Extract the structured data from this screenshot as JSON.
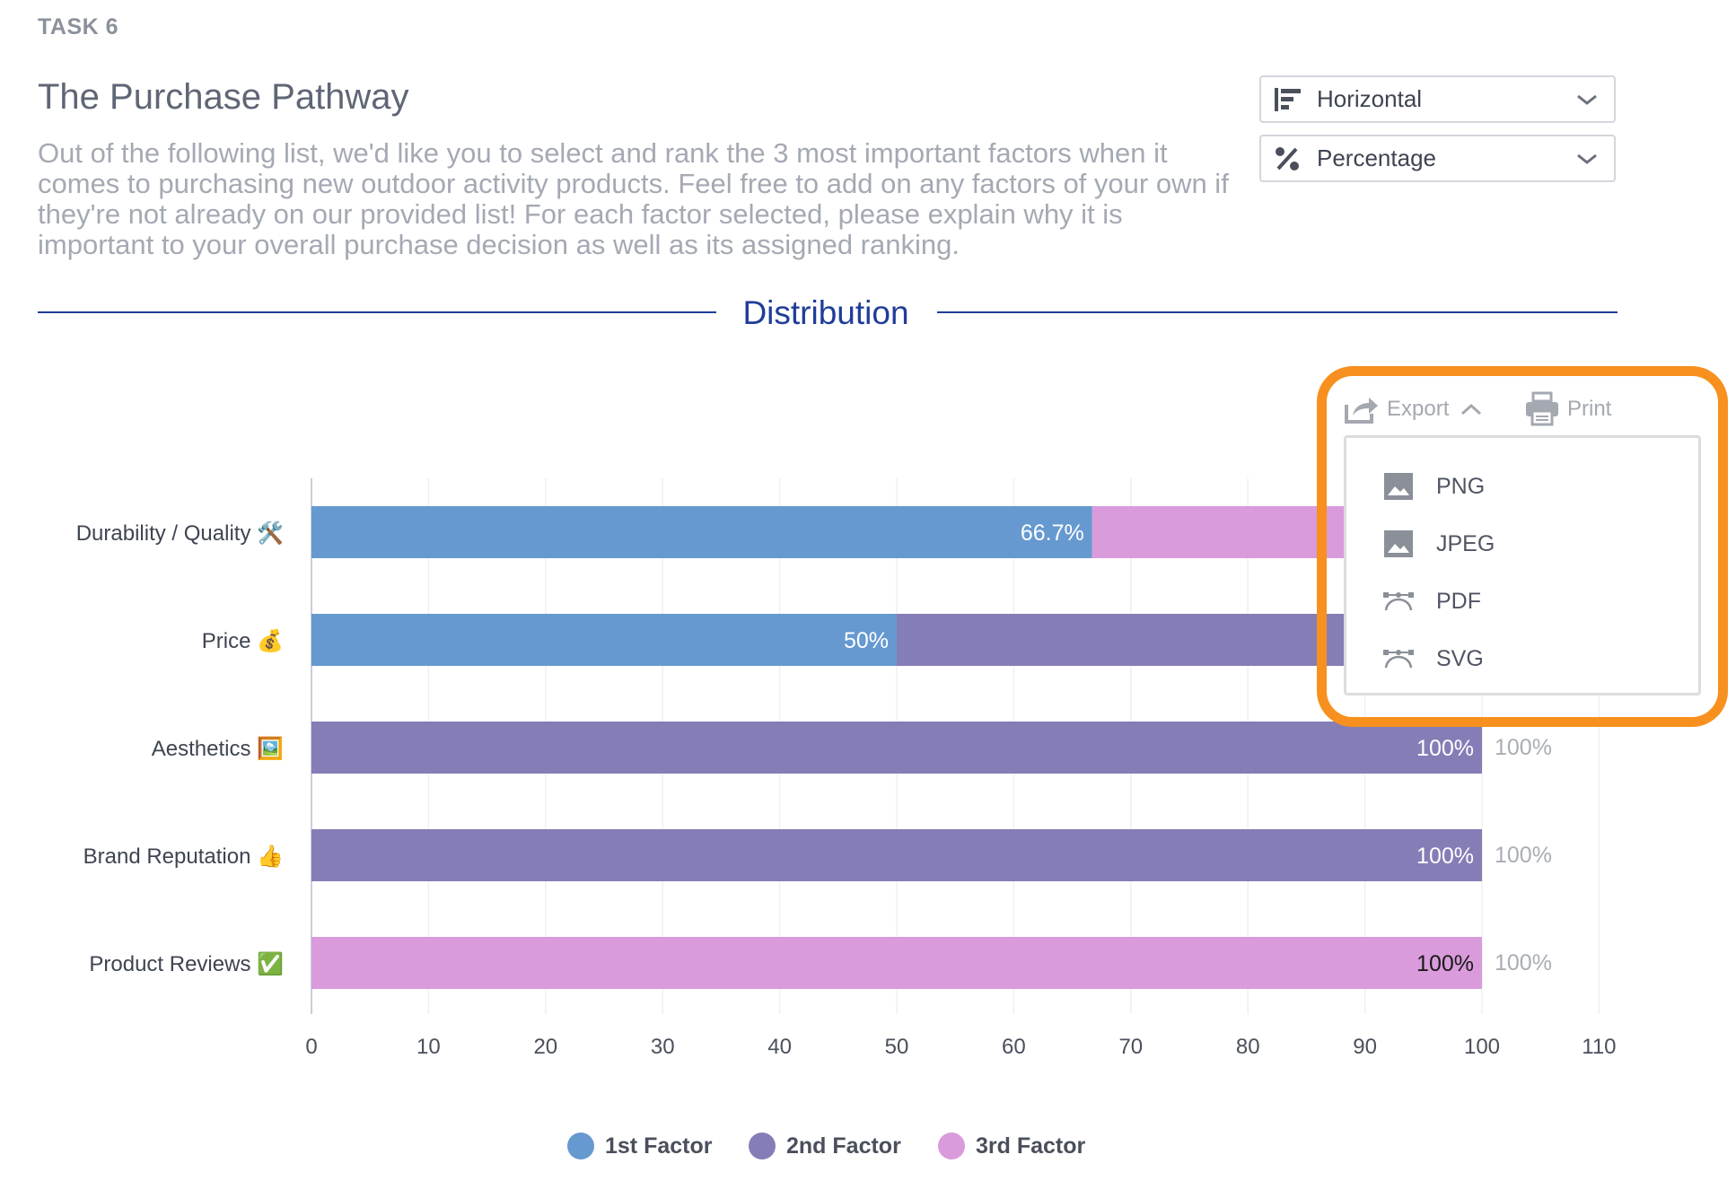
{
  "task_label": "TASK 6",
  "title": "The Purchase Pathway",
  "description": "Out of the following list, we'd like you to select and rank the 3 most important factors when it comes to purchasing new outdoor activity products. Feel free to add on any factors of your own if they're not already on our provided list! For each factor selected, please explain why it is important to your overall purchase decision as well as its assigned ranking.",
  "controls": {
    "orientation": {
      "label": "Horizontal",
      "icon": "horizontal-bars-icon"
    },
    "value_mode": {
      "label": "Percentage",
      "icon": "percent-icon"
    }
  },
  "section_title": "Distribution",
  "toolbar": {
    "export_label": "Export",
    "print_label": "Print"
  },
  "export_menu": {
    "open": true,
    "items": [
      {
        "label": "PNG",
        "icon": "image-icon"
      },
      {
        "label": "JPEG",
        "icon": "image-icon"
      },
      {
        "label": "PDF",
        "icon": "vector-icon"
      },
      {
        "label": "SVG",
        "icon": "vector-icon"
      }
    ]
  },
  "colors": {
    "first": "#6699d0",
    "second": "#857db6",
    "third": "#d99bdb",
    "highlight": "#f7901e",
    "accent": "#1f3d99"
  },
  "chart_data": {
    "type": "bar",
    "orientation": "horizontal",
    "stacked": true,
    "categories": [
      "Durability / Quality 🛠️",
      "Price 💰",
      "Aesthetics 🖼️",
      "Brand Reputation 👍",
      "Product Reviews ✅"
    ],
    "series": [
      {
        "name": "1st Factor",
        "values": [
          66.7,
          50,
          0,
          0,
          0
        ],
        "labels": [
          "66.7%",
          "50%",
          "",
          "",
          ""
        ]
      },
      {
        "name": "2nd Factor",
        "values": [
          0,
          50,
          100,
          100,
          0
        ],
        "labels": [
          "",
          "",
          "100%",
          "100%",
          ""
        ]
      },
      {
        "name": "3rd Factor",
        "values": [
          33.3,
          0,
          0,
          0,
          100
        ],
        "labels": [
          "",
          "",
          "",
          "",
          "100%"
        ]
      }
    ],
    "totals": [
      "",
      "",
      "100%",
      "100%",
      "100%"
    ],
    "xlim": [
      0,
      110
    ],
    "xticks": [
      0,
      10,
      20,
      30,
      40,
      50,
      60,
      70,
      80,
      90,
      100,
      110
    ],
    "grid": true,
    "legend_position": "bottom"
  }
}
